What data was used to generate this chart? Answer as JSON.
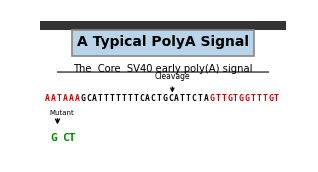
{
  "title": "A Typical PolyA Signal",
  "subtitle": "The  Core  SV40 early poly(A) signal",
  "bg_top": "#b8d4e8",
  "seq_red_left": "AATAAA",
  "seq_black_mid": "GCATTTTTTTCACTGCATTCTA",
  "seq_red_right": "GTTGTGGTTTGT",
  "cleavage_label": "Cleavage",
  "mutant_label": "Mutant",
  "mutant_g": "G",
  "mutant_ct": "CT",
  "red_color": "#cc0000",
  "green_color": "#008800",
  "black_color": "#000000",
  "white_bg": "#ffffff",
  "dark_top": "#333333",
  "gray_edge": "#888888"
}
